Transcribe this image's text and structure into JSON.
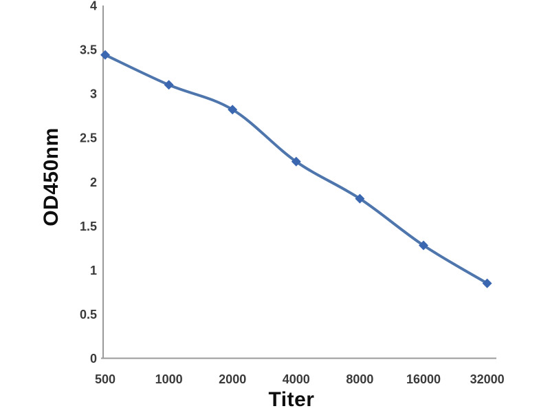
{
  "chart_data": {
    "type": "line",
    "title": "",
    "xlabel": "Titer",
    "ylabel": "OD450nm",
    "categories": [
      "500",
      "1000",
      "2000",
      "4000",
      "8000",
      "16000",
      "32000"
    ],
    "values": [
      3.44,
      3.1,
      2.82,
      2.23,
      1.81,
      1.28,
      0.85
    ],
    "ylim": [
      0,
      4
    ],
    "yticks": [
      0,
      0.5,
      1,
      1.5,
      2,
      2.5,
      3,
      3.5,
      4
    ],
    "ytick_labels": [
      "0",
      "0.5",
      "1",
      "1.5",
      "2",
      "2.5",
      "3",
      "3.5",
      "4"
    ],
    "grid": false,
    "legend_position": "none",
    "marker_shape": "diamond",
    "line_smooth": true,
    "colors": {
      "line": "#4e76ad",
      "marker": "#3b66b0",
      "axis": "#999999",
      "tick_text": "#3a3a3a",
      "title_text": "#0e0e0e",
      "background": "#ffffff"
    }
  }
}
